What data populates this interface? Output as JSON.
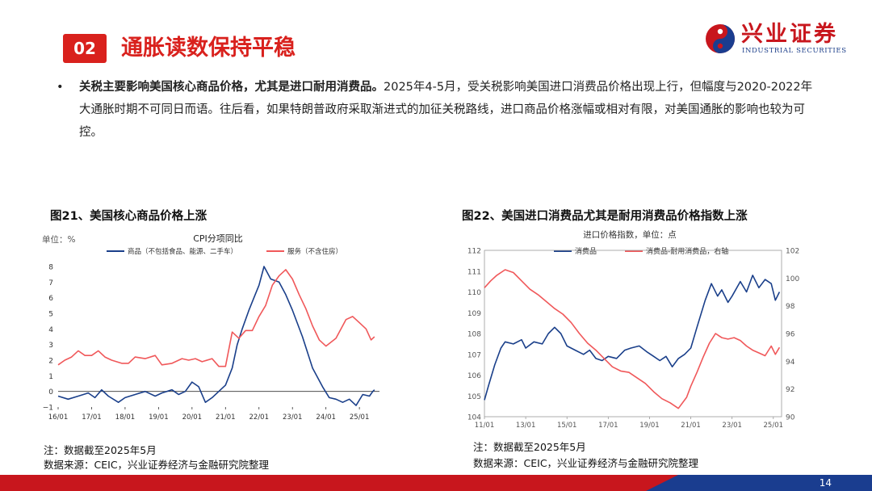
{
  "header": {
    "section_no": "02",
    "section_title": "通胀读数保持平稳"
  },
  "logo": {
    "cn": "兴业证券",
    "en": "INDUSTRIAL SECURITIES"
  },
  "bullet": {
    "bold": "关税主要影响美国核心商品价格，尤其是进口耐用消费品。",
    "text": "2025年4-5月，受关税影响美国进口消费品价格出现上行，但幅度与2020-2022年大通胀时期不可同日而语。往后看，如果特朗普政府采取渐进式的加征关税路线，进口商品价格涨幅或相对有限，对美国通胀的影响也较为可控。"
  },
  "figures": [
    {
      "title": "图21、美国核心商品价格上涨",
      "note": "注：数据截至2025年5月",
      "source": "数据来源：CEIC，兴业证券经济与金融研究院整理"
    },
    {
      "title": "图22、美国进口消费品尤其是耐用消费品价格指数上涨",
      "note": "注：数据截至2025年5月",
      "source": "数据来源：CEIC，兴业证券经济与金融研究院整理"
    }
  ],
  "page_number": "14",
  "colors": {
    "accent": "#d9211d",
    "series_blue": "#1a3f8a",
    "series_red": "#f0585a"
  },
  "chart_data": [
    {
      "type": "line",
      "title": "CPI分项同比",
      "unit_label": "单位：%",
      "x_ticks": [
        "16/01",
        "17/01",
        "18/01",
        "19/01",
        "20/01",
        "21/01",
        "22/01",
        "23/01",
        "24/01",
        "25/01"
      ],
      "ylim": [
        -1,
        8
      ],
      "y_ticks": [
        -1,
        0,
        1,
        2,
        3,
        4,
        5,
        6,
        7,
        8
      ],
      "legend_position": "top",
      "series": [
        {
          "name": "商品（不包括食品、能源、二手车）",
          "color": "#1a3f8a",
          "points": [
            [
              2016.0,
              -0.3
            ],
            [
              2016.3,
              -0.5
            ],
            [
              2016.6,
              -0.3
            ],
            [
              2016.9,
              -0.1
            ],
            [
              2017.1,
              -0.4
            ],
            [
              2017.3,
              0.1
            ],
            [
              2017.5,
              -0.3
            ],
            [
              2017.8,
              -0.7
            ],
            [
              2018.0,
              -0.4
            ],
            [
              2018.3,
              -0.2
            ],
            [
              2018.6,
              0.0
            ],
            [
              2018.9,
              -0.3
            ],
            [
              2019.1,
              -0.1
            ],
            [
              2019.4,
              0.1
            ],
            [
              2019.6,
              -0.2
            ],
            [
              2019.8,
              0.0
            ],
            [
              2020.0,
              0.6
            ],
            [
              2020.2,
              0.3
            ],
            [
              2020.4,
              -0.7
            ],
            [
              2020.6,
              -0.4
            ],
            [
              2020.9,
              0.2
            ],
            [
              2021.0,
              0.4
            ],
            [
              2021.2,
              1.5
            ],
            [
              2021.35,
              3.0
            ],
            [
              2021.5,
              4.0
            ],
            [
              2021.7,
              5.2
            ],
            [
              2021.85,
              6.0
            ],
            [
              2022.0,
              6.8
            ],
            [
              2022.15,
              8.0
            ],
            [
              2022.35,
              7.2
            ],
            [
              2022.6,
              7.0
            ],
            [
              2022.8,
              6.2
            ],
            [
              2023.0,
              5.2
            ],
            [
              2023.3,
              3.5
            ],
            [
              2023.6,
              1.5
            ],
            [
              2023.9,
              0.3
            ],
            [
              2024.1,
              -0.4
            ],
            [
              2024.3,
              -0.5
            ],
            [
              2024.5,
              -0.7
            ],
            [
              2024.7,
              -0.5
            ],
            [
              2024.9,
              -0.9
            ],
            [
              2025.1,
              -0.2
            ],
            [
              2025.3,
              -0.3
            ],
            [
              2025.4,
              0.0
            ],
            [
              2025.45,
              0.1
            ]
          ]
        },
        {
          "name": "服务（不含住房）",
          "color": "#f0585a",
          "points": [
            [
              2016.0,
              1.7
            ],
            [
              2016.2,
              2.0
            ],
            [
              2016.4,
              2.2
            ],
            [
              2016.6,
              2.6
            ],
            [
              2016.8,
              2.3
            ],
            [
              2017.0,
              2.3
            ],
            [
              2017.2,
              2.6
            ],
            [
              2017.4,
              2.2
            ],
            [
              2017.6,
              2.0
            ],
            [
              2017.9,
              1.8
            ],
            [
              2018.1,
              1.8
            ],
            [
              2018.3,
              2.2
            ],
            [
              2018.6,
              2.1
            ],
            [
              2018.9,
              2.3
            ],
            [
              2019.1,
              1.7
            ],
            [
              2019.4,
              1.8
            ],
            [
              2019.7,
              2.1
            ],
            [
              2019.9,
              2.0
            ],
            [
              2020.1,
              2.1
            ],
            [
              2020.3,
              1.9
            ],
            [
              2020.6,
              2.1
            ],
            [
              2020.8,
              1.6
            ],
            [
              2021.0,
              1.6
            ],
            [
              2021.2,
              3.8
            ],
            [
              2021.4,
              3.4
            ],
            [
              2021.6,
              3.9
            ],
            [
              2021.8,
              3.9
            ],
            [
              2022.0,
              4.8
            ],
            [
              2022.2,
              5.5
            ],
            [
              2022.4,
              6.8
            ],
            [
              2022.6,
              7.4
            ],
            [
              2022.8,
              7.8
            ],
            [
              2023.0,
              7.2
            ],
            [
              2023.2,
              6.2
            ],
            [
              2023.4,
              5.3
            ],
            [
              2023.6,
              4.2
            ],
            [
              2023.8,
              3.3
            ],
            [
              2024.0,
              2.9
            ],
            [
              2024.3,
              3.4
            ],
            [
              2024.6,
              4.6
            ],
            [
              2024.8,
              4.8
            ],
            [
              2025.0,
              4.4
            ],
            [
              2025.2,
              4.0
            ],
            [
              2025.35,
              3.3
            ],
            [
              2025.45,
              3.5
            ]
          ]
        }
      ]
    },
    {
      "type": "line",
      "title": "进口价格指数，单位：点",
      "x_ticks": [
        "11/01",
        "13/01",
        "15/01",
        "17/01",
        "19/01",
        "21/01",
        "23/01",
        "25/01"
      ],
      "ylim": [
        104,
        112
      ],
      "y_ticks": [
        104,
        105,
        106,
        107,
        108,
        109,
        110,
        111,
        112
      ],
      "y2lim": [
        90,
        102
      ],
      "y2_ticks": [
        90,
        92,
        94,
        96,
        98,
        100,
        102
      ],
      "legend_position": "top",
      "series": [
        {
          "name": "消费品",
          "color": "#1a3f8a",
          "axis": "left",
          "points": [
            [
              2011.0,
              104.8
            ],
            [
              2011.2,
              105.5
            ],
            [
              2011.5,
              106.5
            ],
            [
              2011.8,
              107.3
            ],
            [
              2012.0,
              107.6
            ],
            [
              2012.4,
              107.5
            ],
            [
              2012.8,
              107.7
            ],
            [
              2013.0,
              107.3
            ],
            [
              2013.4,
              107.6
            ],
            [
              2013.8,
              107.5
            ],
            [
              2014.1,
              108.0
            ],
            [
              2014.4,
              108.3
            ],
            [
              2014.7,
              108.0
            ],
            [
              2015.0,
              107.4
            ],
            [
              2015.4,
              107.2
            ],
            [
              2015.8,
              107.0
            ],
            [
              2016.1,
              107.2
            ],
            [
              2016.4,
              106.8
            ],
            [
              2016.7,
              106.7
            ],
            [
              2017.0,
              106.9
            ],
            [
              2017.4,
              106.8
            ],
            [
              2017.8,
              107.2
            ],
            [
              2018.1,
              107.3
            ],
            [
              2018.5,
              107.4
            ],
            [
              2018.9,
              107.1
            ],
            [
              2019.2,
              106.9
            ],
            [
              2019.5,
              106.7
            ],
            [
              2019.8,
              106.9
            ],
            [
              2020.1,
              106.4
            ],
            [
              2020.4,
              106.8
            ],
            [
              2020.7,
              107.0
            ],
            [
              2021.0,
              107.3
            ],
            [
              2021.3,
              108.3
            ],
            [
              2021.7,
              109.6
            ],
            [
              2022.0,
              110.4
            ],
            [
              2022.3,
              109.8
            ],
            [
              2022.5,
              110.1
            ],
            [
              2022.8,
              109.5
            ],
            [
              2023.0,
              109.8
            ],
            [
              2023.4,
              110.5
            ],
            [
              2023.7,
              110.0
            ],
            [
              2024.0,
              110.8
            ],
            [
              2024.3,
              110.2
            ],
            [
              2024.6,
              110.6
            ],
            [
              2024.9,
              110.4
            ],
            [
              2025.1,
              109.6
            ],
            [
              2025.3,
              110.0
            ]
          ]
        },
        {
          "name": "消费品-耐用消费品，右轴",
          "color": "#f0585a",
          "axis": "right",
          "points": [
            [
              2011.0,
              99.3
            ],
            [
              2011.3,
              99.8
            ],
            [
              2011.6,
              100.2
            ],
            [
              2012.0,
              100.6
            ],
            [
              2012.4,
              100.4
            ],
            [
              2012.8,
              99.8
            ],
            [
              2013.2,
              99.2
            ],
            [
              2013.6,
              98.8
            ],
            [
              2014.0,
              98.3
            ],
            [
              2014.4,
              97.8
            ],
            [
              2014.8,
              97.4
            ],
            [
              2015.2,
              96.8
            ],
            [
              2015.6,
              96.0
            ],
            [
              2016.0,
              95.3
            ],
            [
              2016.4,
              94.8
            ],
            [
              2016.8,
              94.2
            ],
            [
              2017.2,
              93.6
            ],
            [
              2017.6,
              93.3
            ],
            [
              2018.0,
              93.2
            ],
            [
              2018.4,
              92.8
            ],
            [
              2018.8,
              92.4
            ],
            [
              2019.2,
              91.8
            ],
            [
              2019.6,
              91.3
            ],
            [
              2020.0,
              91.0
            ],
            [
              2020.4,
              90.6
            ],
            [
              2020.8,
              91.4
            ],
            [
              2021.0,
              92.2
            ],
            [
              2021.3,
              93.2
            ],
            [
              2021.6,
              94.3
            ],
            [
              2021.9,
              95.3
            ],
            [
              2022.2,
              96.0
            ],
            [
              2022.5,
              95.7
            ],
            [
              2022.8,
              95.6
            ],
            [
              2023.1,
              95.7
            ],
            [
              2023.4,
              95.5
            ],
            [
              2023.7,
              95.1
            ],
            [
              2024.0,
              94.8
            ],
            [
              2024.3,
              94.6
            ],
            [
              2024.6,
              94.4
            ],
            [
              2024.9,
              95.1
            ],
            [
              2025.1,
              94.5
            ],
            [
              2025.3,
              95.0
            ]
          ]
        }
      ]
    }
  ]
}
